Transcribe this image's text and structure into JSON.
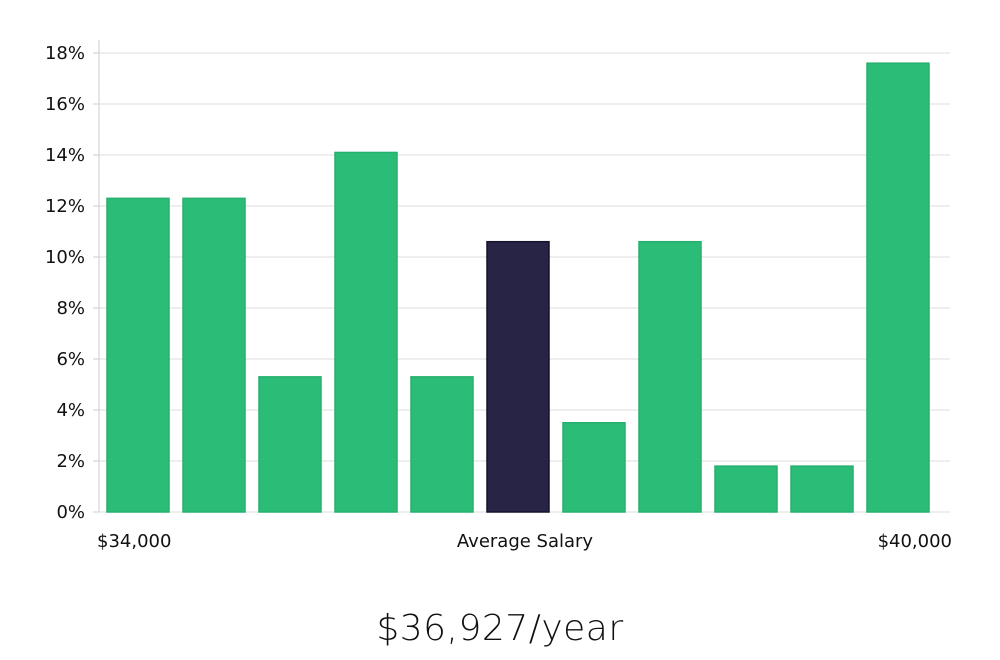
{
  "chart_data": {
    "type": "bar",
    "title": "",
    "ylabel": "",
    "xlabel": "Average Salary",
    "y_unit_suffix": "%",
    "ylim": [
      0,
      18
    ],
    "ytick_step": 2,
    "y_ticks": [
      "0%",
      "2%",
      "4%",
      "6%",
      "8%",
      "10%",
      "12%",
      "14%",
      "16%",
      "18%"
    ],
    "x_label_left": "$34,000",
    "x_label_center": "Average Salary",
    "x_label_right": "$40,000",
    "values": [
      12.3,
      12.3,
      5.3,
      14.1,
      5.3,
      10.6,
      3.5,
      10.6,
      1.8,
      1.8,
      17.6
    ],
    "highlight_index": 5,
    "grid": true
  },
  "colors": {
    "bar": "#2bbd77",
    "highlight": "#272446",
    "grid": "#dddddd",
    "axis": "#cccccc"
  },
  "summary": {
    "average_salary_text": "$36,927/year"
  }
}
